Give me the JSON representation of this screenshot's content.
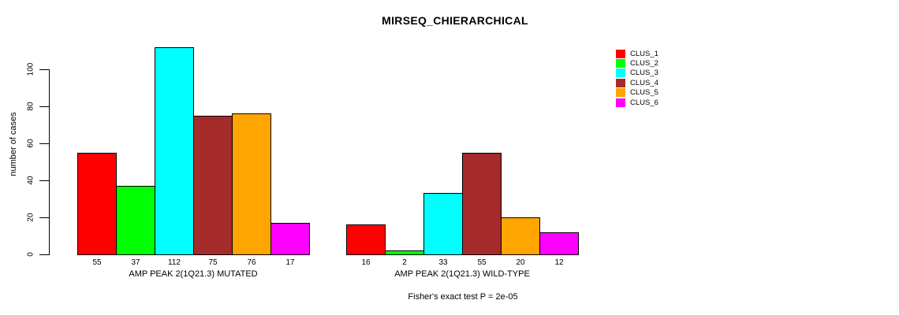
{
  "figure": {
    "title": "MIRSEQ_CHIERARCHICAL",
    "ylabel": "number of cases",
    "annotation": "Fisher's exact test P = 2e-05"
  },
  "chart_data": {
    "type": "bar",
    "title": "MIRSEQ_CHIERARCHICAL",
    "xlabel": "",
    "ylabel": "number of cases",
    "ylim": [
      0,
      115
    ],
    "yticks": [
      0,
      20,
      40,
      60,
      80,
      100
    ],
    "grid": false,
    "legend_position": "right-outside",
    "bar_value_labels": true,
    "categories": [
      "AMP PEAK 2(1Q21.3) MUTATED",
      "AMP PEAK 2(1Q21.3) WILD-TYPE"
    ],
    "series": [
      {
        "name": "CLUS_1",
        "color": "#FF0000",
        "values": [
          55,
          16
        ]
      },
      {
        "name": "CLUS_2",
        "color": "#00FF00",
        "values": [
          37,
          2
        ]
      },
      {
        "name": "CLUS_3",
        "color": "#00FFFF",
        "values": [
          112,
          33
        ]
      },
      {
        "name": "CLUS_4",
        "color": "#A52A2A",
        "values": [
          75,
          55
        ]
      },
      {
        "name": "CLUS_5",
        "color": "#FFA500",
        "values": [
          76,
          20
        ]
      },
      {
        "name": "CLUS_6",
        "color": "#FF00FF",
        "values": [
          17,
          12
        ]
      }
    ],
    "annotation": "Fisher's exact test P = 2e-05"
  }
}
